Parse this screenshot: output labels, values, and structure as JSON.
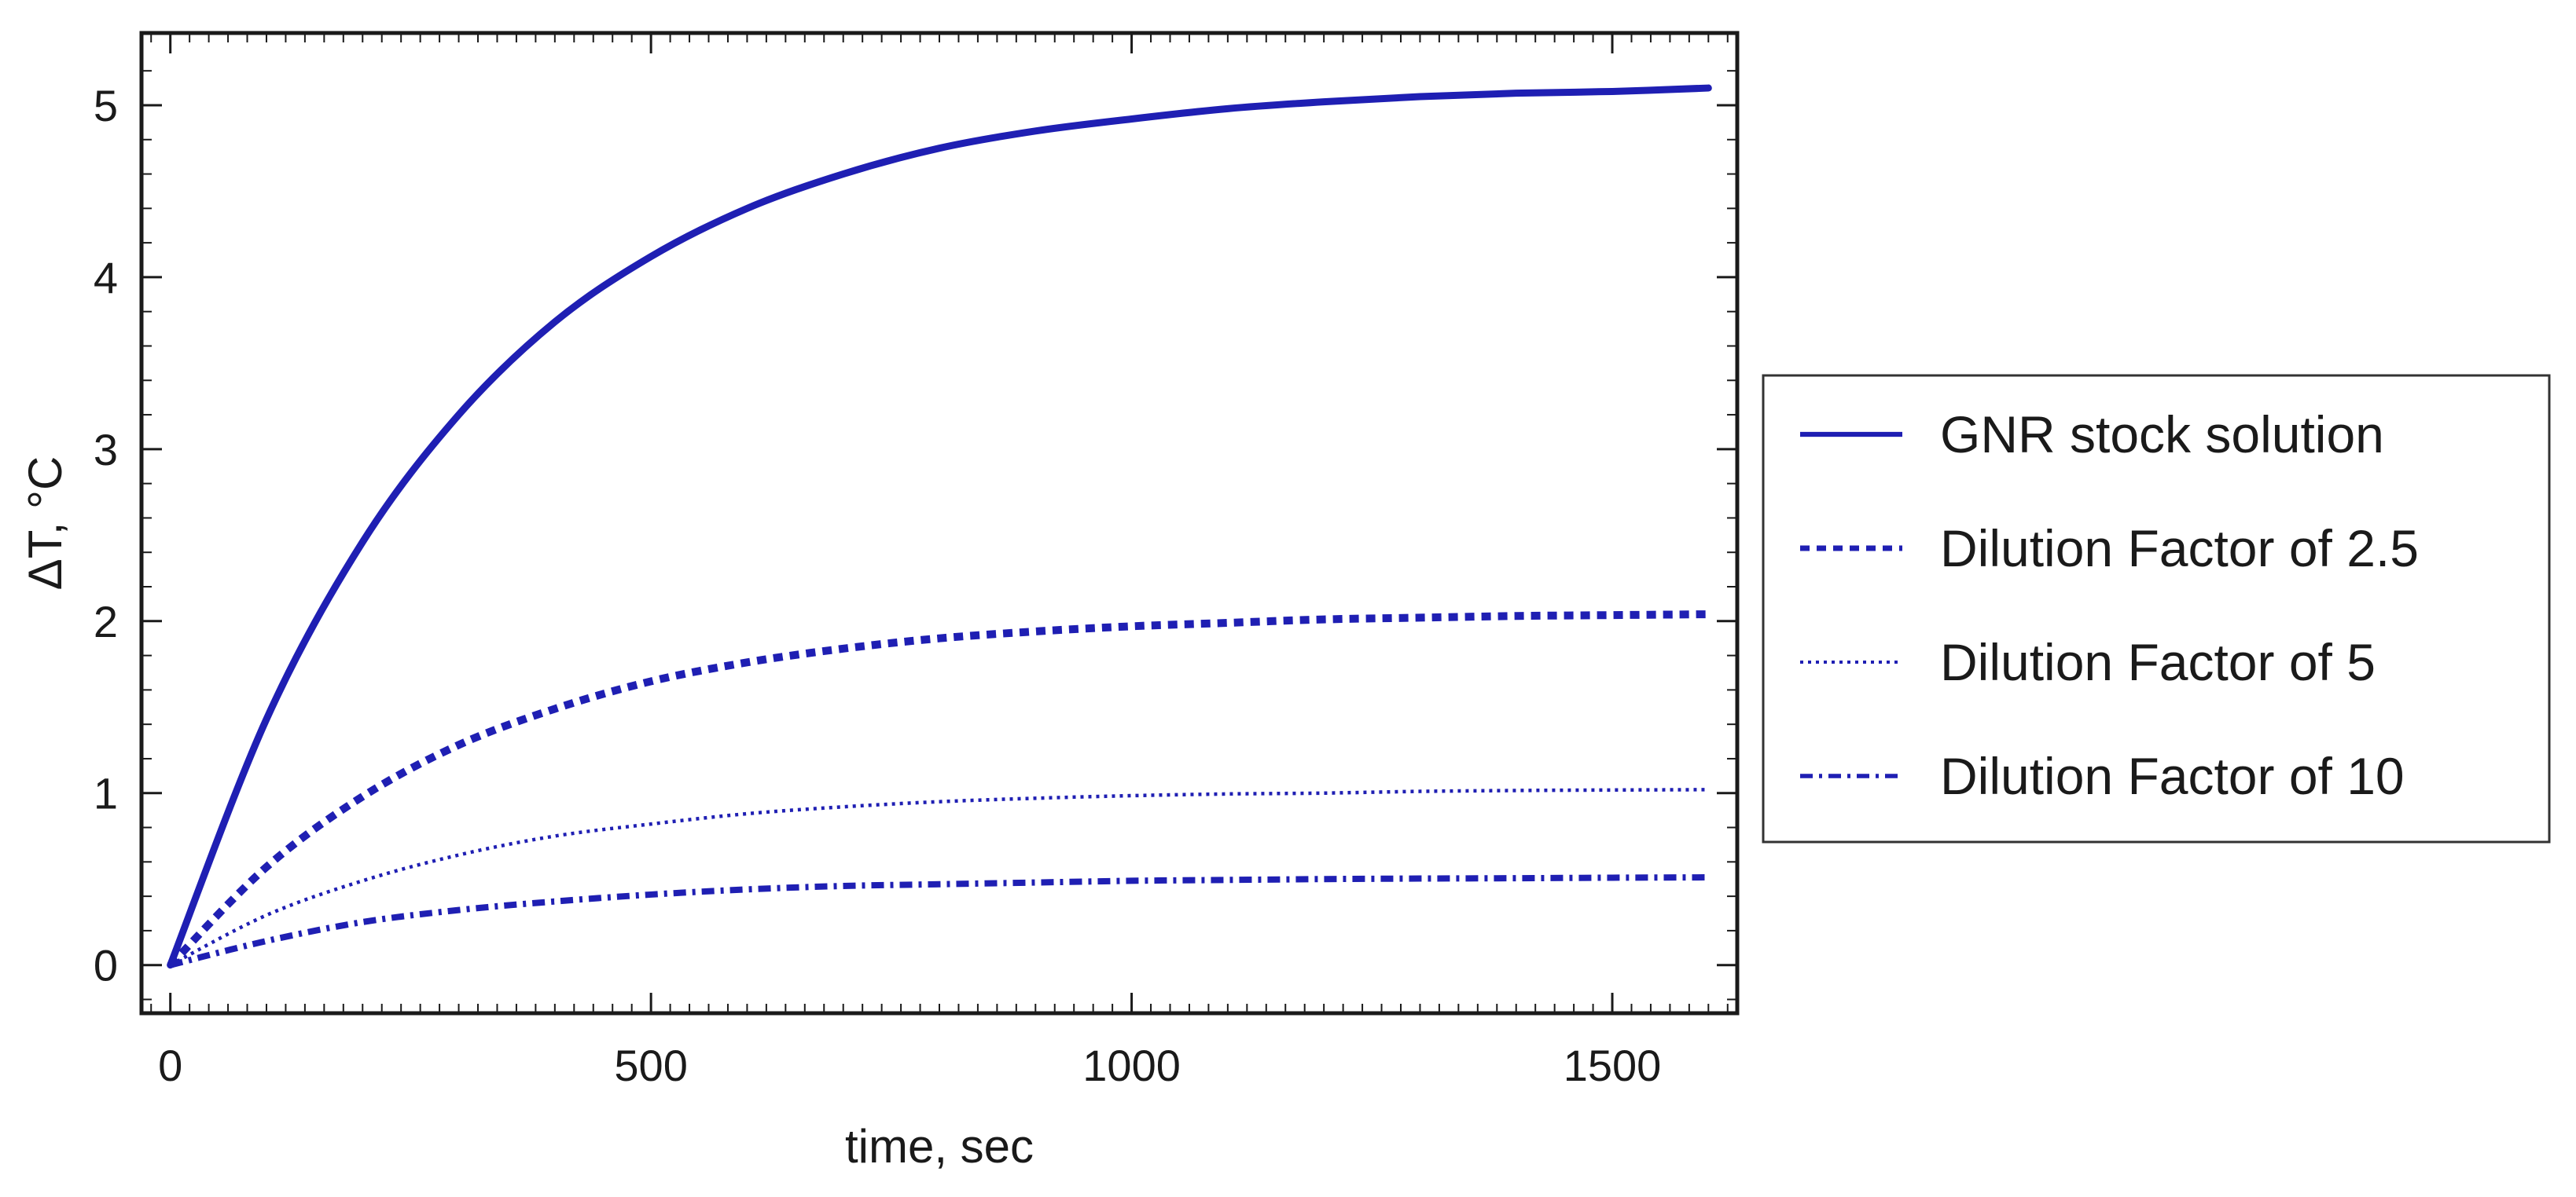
{
  "chart_data": {
    "type": "line",
    "title": "",
    "xlabel": "time, sec",
    "ylabel": "ΔT, °C",
    "xlim": [
      -30,
      1630
    ],
    "ylim": [
      -0.28,
      5.42
    ],
    "xticks": [
      0,
      500,
      1000,
      1500
    ],
    "yticks": [
      0,
      1,
      2,
      3,
      4,
      5
    ],
    "grid": false,
    "legend_position": "right",
    "line_color": "#1f1fb3",
    "series": [
      {
        "name": "GNR stock solution",
        "style": "solid",
        "x": [
          0,
          100,
          200,
          300,
          400,
          500,
          600,
          700,
          800,
          900,
          1000,
          1100,
          1200,
          1300,
          1400,
          1500,
          1600
        ],
        "y": [
          0,
          1.43,
          2.46,
          3.2,
          3.74,
          4.12,
          4.4,
          4.6,
          4.75,
          4.85,
          4.92,
          4.98,
          5.02,
          5.05,
          5.07,
          5.08,
          5.1
        ]
      },
      {
        "name": "Dilution Factor of 2.5",
        "style": "dashed",
        "x": [
          0,
          100,
          200,
          300,
          400,
          500,
          600,
          700,
          800,
          900,
          1000,
          1100,
          1200,
          1300,
          1400,
          1500,
          1600
        ],
        "y": [
          0,
          0.57,
          0.98,
          1.28,
          1.49,
          1.65,
          1.76,
          1.84,
          1.9,
          1.94,
          1.97,
          1.99,
          2.01,
          2.02,
          2.03,
          2.035,
          2.04
        ]
      },
      {
        "name": "Dilution Factor of 5",
        "style": "dotted",
        "x": [
          0,
          100,
          200,
          300,
          400,
          500,
          600,
          700,
          800,
          900,
          1000,
          1100,
          1200,
          1300,
          1400,
          1500,
          1600
        ],
        "y": [
          0,
          0.29,
          0.49,
          0.64,
          0.75,
          0.82,
          0.88,
          0.92,
          0.95,
          0.97,
          0.985,
          0.995,
          1.0,
          1.01,
          1.015,
          1.018,
          1.02
        ]
      },
      {
        "name": "Dilution Factor of 10",
        "style": "dashdot",
        "x": [
          0,
          100,
          200,
          300,
          400,
          500,
          600,
          700,
          800,
          900,
          1000,
          1100,
          1200,
          1300,
          1400,
          1500,
          1600
        ],
        "y": [
          0,
          0.14,
          0.25,
          0.32,
          0.37,
          0.41,
          0.44,
          0.46,
          0.47,
          0.48,
          0.49,
          0.495,
          0.5,
          0.503,
          0.505,
          0.508,
          0.51
        ]
      }
    ]
  }
}
